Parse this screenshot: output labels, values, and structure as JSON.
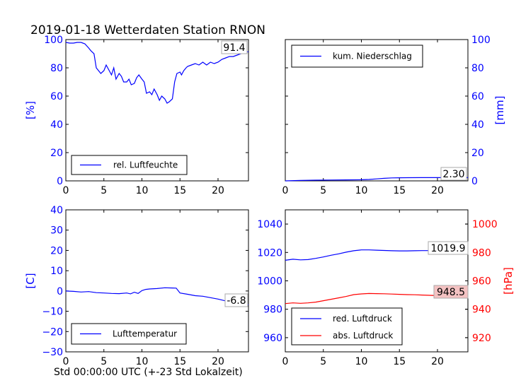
{
  "title": "2019-01-18 Wetterdaten Station RNON",
  "colors": {
    "blue": "#0000ff",
    "red": "#ff0000",
    "black": "#000000",
    "highlight_red": "#f4c2c2"
  },
  "chart_data": [
    {
      "type": "line",
      "ylabel": "[%]",
      "xlim": [
        0,
        24
      ],
      "ylim": [
        0,
        100
      ],
      "xticks": [
        "0",
        "5",
        "10",
        "15",
        "20"
      ],
      "yticks": [
        "0",
        "20",
        "40",
        "60",
        "80",
        "100"
      ],
      "legend": "lower-left",
      "annotation": "91.4",
      "series": [
        {
          "name": "rel. Luftfeuchte",
          "color": "#0000ff",
          "x": [
            0,
            0.5,
            1,
            1.5,
            2,
            2.5,
            3,
            3.3,
            3.7,
            4,
            4.3,
            4.6,
            5,
            5.3,
            5.7,
            6,
            6.3,
            6.6,
            7,
            7.3,
            7.6,
            8,
            8.3,
            8.6,
            9,
            9.3,
            9.6,
            10,
            10.3,
            10.6,
            11,
            11.3,
            11.6,
            12,
            12.3,
            12.6,
            13,
            13.3,
            13.6,
            14,
            14.3,
            14.6,
            15,
            15.2,
            15.5,
            15.8,
            16,
            16.5,
            17,
            17.5,
            18,
            18.5,
            19,
            19.5,
            20,
            20.5,
            21,
            21.5,
            22,
            22.5,
            23,
            23.5,
            24
          ],
          "y": [
            98,
            97.5,
            97.5,
            98,
            98,
            97,
            94,
            92,
            90,
            80,
            78,
            76,
            78,
            82,
            78,
            75,
            80,
            72,
            76,
            74,
            70,
            70,
            72,
            68,
            69,
            73,
            75,
            72,
            70,
            62,
            63,
            61,
            65,
            61,
            57,
            60,
            58,
            55,
            56,
            58,
            70,
            76,
            77,
            75,
            78,
            80,
            81,
            82,
            83,
            82,
            84,
            82,
            84,
            83,
            84,
            86,
            87,
            88,
            88,
            89,
            90,
            91,
            91.4
          ]
        }
      ]
    },
    {
      "type": "line",
      "ylabel": "[mm]",
      "xlim": [
        0,
        24
      ],
      "ylim": [
        0,
        100
      ],
      "xticks": [
        "0",
        "5",
        "10",
        "15",
        "20"
      ],
      "yticks": [
        "0",
        "20",
        "40",
        "60",
        "80",
        "100"
      ],
      "legend": "top-left",
      "annotation": "2.30",
      "series": [
        {
          "name": "kum. Niederschlag",
          "color": "#0000ff",
          "x": [
            0,
            2,
            4,
            6,
            8,
            10,
            11,
            12,
            13,
            14,
            15,
            16,
            18,
            20,
            22,
            24
          ],
          "y": [
            0,
            0.3,
            0.5,
            0.6,
            0.7,
            0.8,
            1.0,
            1.4,
            1.8,
            2.1,
            2.2,
            2.25,
            2.3,
            2.3,
            2.3,
            2.3
          ]
        }
      ]
    },
    {
      "type": "line",
      "ylabel": "[C]",
      "xlabel": "Std 00:00:00 UTC (+-23 Std Lokalzeit)",
      "xlim": [
        0,
        24
      ],
      "ylim": [
        -30,
        40
      ],
      "xticks": [
        "0",
        "5",
        "10",
        "15",
        "20"
      ],
      "yticks": [
        "−30",
        "−20",
        "−10",
        "0",
        "10",
        "20",
        "30",
        "40"
      ],
      "legend": "lower-left",
      "annotation": "-6.8",
      "series": [
        {
          "name": "Lufttemperatur",
          "color": "#0000ff",
          "x": [
            0,
            1,
            2,
            3,
            4,
            5,
            6,
            7,
            8,
            8.5,
            9,
            9.5,
            10,
            10.5,
            11,
            12,
            13,
            14,
            14.5,
            15,
            16,
            17,
            18,
            19,
            20,
            21,
            22,
            23,
            24
          ],
          "y": [
            0,
            -0.2,
            -0.5,
            -0.3,
            -0.8,
            -1,
            -1.2,
            -1.3,
            -1,
            -1.4,
            -0.6,
            -1.2,
            0.2,
            0.8,
            1,
            1.2,
            1.6,
            1.5,
            1.4,
            -1,
            -1.6,
            -2.3,
            -2.6,
            -3.3,
            -4,
            -4.9,
            -5.6,
            -6.2,
            -6.8
          ]
        }
      ]
    },
    {
      "type": "line",
      "xlim": [
        0,
        24
      ],
      "ylim": [
        950,
        1050
      ],
      "y2lim": [
        910,
        1010
      ],
      "y2label": "[hPa]",
      "xticks": [
        "0",
        "5",
        "10",
        "15",
        "20"
      ],
      "yticks": [
        "960",
        "980",
        "1000",
        "1020",
        "1040"
      ],
      "y2ticks": [
        "920",
        "940",
        "960",
        "980",
        "1000"
      ],
      "legend": "lower-left",
      "annotations": [
        "1019.9",
        "948.5"
      ],
      "series": [
        {
          "name": "red. Luftdruck",
          "color": "#0000ff",
          "axis": "left",
          "x": [
            0,
            1,
            2,
            3,
            4,
            5,
            6,
            7,
            8,
            9,
            10,
            11,
            12,
            13,
            14,
            15,
            16,
            17,
            18,
            19,
            20,
            21,
            22,
            23,
            24
          ],
          "y": [
            1014.5,
            1015.2,
            1014.8,
            1015,
            1015.8,
            1016.8,
            1018,
            1019,
            1020.2,
            1021.2,
            1021.8,
            1021.8,
            1021.6,
            1021.4,
            1021.2,
            1021.1,
            1021.1,
            1021.2,
            1021.3,
            1021.3,
            1021.1,
            1020.9,
            1020.5,
            1020.2,
            1019.9
          ]
        },
        {
          "name": "abs. Luftdruck",
          "color": "#ff0000",
          "axis": "right",
          "x": [
            0,
            1,
            2,
            3,
            4,
            5,
            6,
            7,
            8,
            9,
            10,
            11,
            12,
            13,
            14,
            15,
            16,
            17,
            18,
            19,
            20,
            21,
            22,
            23,
            24
          ],
          "y": [
            944,
            944.5,
            944.2,
            944.5,
            945,
            946,
            947,
            948,
            949,
            950.3,
            950.8,
            951.1,
            951,
            950.9,
            950.7,
            950.5,
            950.3,
            950.2,
            950,
            949.8,
            949.6,
            949.3,
            949,
            948.8,
            948.5
          ]
        }
      ]
    }
  ]
}
